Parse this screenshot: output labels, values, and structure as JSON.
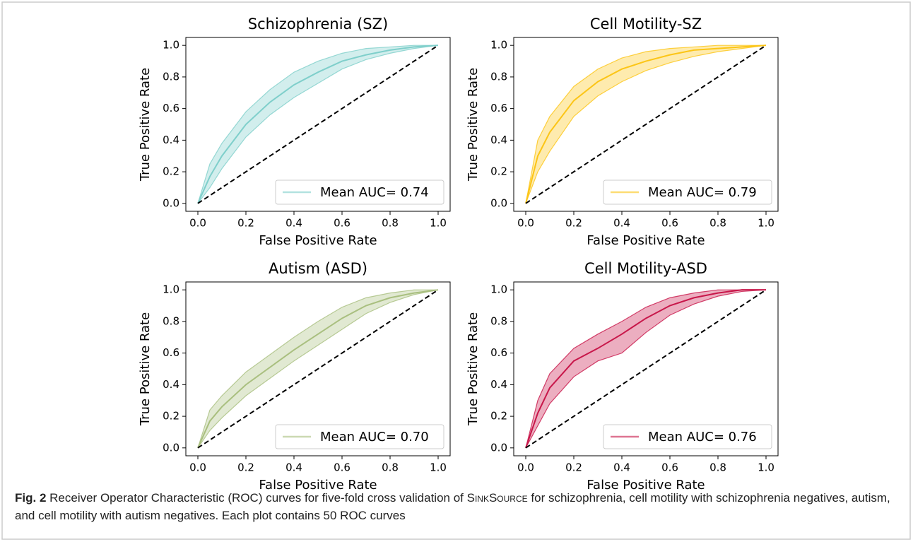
{
  "chart_data": [
    {
      "type": "line",
      "title": "Schizophrenia (SZ)",
      "xlabel": "False Positive Rate",
      "ylabel": "True Positive Rate",
      "xlim": [
        -0.05,
        1.05
      ],
      "ylim": [
        -0.05,
        1.05
      ],
      "xticks": [
        {
          "value": 0,
          "label": "0.0"
        },
        0.2,
        0.4,
        0.6,
        0.8,
        {
          "value": 1,
          "label": "1.0"
        }
      ],
      "yticks": [
        {
          "value": 0,
          "label": "0.0"
        },
        0.2,
        0.4,
        0.6,
        0.8,
        {
          "value": 1,
          "label": "1.0"
        }
      ],
      "legend": "lower right",
      "series": [
        {
          "name": "Mean AUC= 0.74",
          "color": "#7fcfcb",
          "x": [
            0,
            0.05,
            0.1,
            0.2,
            0.3,
            0.4,
            0.5,
            0.6,
            0.7,
            0.8,
            0.9,
            1
          ],
          "values": [
            0,
            0.17,
            0.3,
            0.5,
            0.64,
            0.75,
            0.83,
            0.9,
            0.94,
            0.97,
            0.99,
            1
          ],
          "lower": [
            0,
            0.1,
            0.22,
            0.42,
            0.56,
            0.67,
            0.76,
            0.85,
            0.91,
            0.95,
            0.98,
            1
          ],
          "upper": [
            0,
            0.25,
            0.38,
            0.58,
            0.72,
            0.83,
            0.9,
            0.95,
            0.98,
            0.99,
            1,
            1
          ]
        }
      ],
      "reference": {
        "x": [
          0,
          1
        ],
        "values": [
          0,
          1
        ]
      }
    },
    {
      "type": "line",
      "title": "Cell Motility-SZ",
      "xlabel": "False Positive Rate",
      "ylabel": "True Positive Rate",
      "xlim": [
        -0.05,
        1.05
      ],
      "ylim": [
        -0.05,
        1.05
      ],
      "xticks": [
        {
          "value": 0,
          "label": "0.0"
        },
        0.2,
        0.4,
        0.6,
        0.8,
        {
          "value": 1,
          "label": "1.0"
        }
      ],
      "yticks": [
        {
          "value": 0,
          "label": "0.0"
        },
        0.2,
        0.4,
        0.6,
        0.8,
        {
          "value": 1,
          "label": "1.0"
        }
      ],
      "legend": "lower right",
      "series": [
        {
          "name": "Mean AUC= 0.79",
          "color": "#fcc516",
          "x": [
            0,
            0.05,
            0.1,
            0.2,
            0.3,
            0.4,
            0.5,
            0.6,
            0.7,
            0.8,
            0.9,
            1
          ],
          "values": [
            0,
            0.3,
            0.45,
            0.65,
            0.77,
            0.85,
            0.9,
            0.94,
            0.97,
            0.98,
            0.99,
            1
          ],
          "lower": [
            0,
            0.2,
            0.33,
            0.55,
            0.68,
            0.77,
            0.84,
            0.89,
            0.93,
            0.96,
            0.98,
            1
          ],
          "upper": [
            0,
            0.4,
            0.55,
            0.74,
            0.85,
            0.92,
            0.96,
            0.98,
            0.99,
            1,
            1,
            1
          ]
        }
      ],
      "reference": {
        "x": [
          0,
          1
        ],
        "values": [
          0,
          1
        ]
      }
    },
    {
      "type": "line",
      "title": "Autism (ASD)",
      "xlabel": "False Positive Rate",
      "ylabel": "True Positive Rate",
      "xlim": [
        -0.05,
        1.05
      ],
      "ylim": [
        -0.05,
        1.05
      ],
      "xticks": [
        {
          "value": 0,
          "label": "0.0"
        },
        0.2,
        0.4,
        0.6,
        0.8,
        {
          "value": 1,
          "label": "1.0"
        }
      ],
      "yticks": [
        {
          "value": 0,
          "label": "0.0"
        },
        0.2,
        0.4,
        0.6,
        0.8,
        {
          "value": 1,
          "label": "1.0"
        }
      ],
      "legend": "lower right",
      "series": [
        {
          "name": "Mean AUC= 0.70",
          "color": "#a9bf7f",
          "x": [
            0,
            0.05,
            0.1,
            0.2,
            0.3,
            0.4,
            0.5,
            0.6,
            0.7,
            0.8,
            0.9,
            1
          ],
          "values": [
            0,
            0.17,
            0.26,
            0.4,
            0.51,
            0.62,
            0.72,
            0.82,
            0.9,
            0.95,
            0.98,
            1
          ],
          "lower": [
            0,
            0.11,
            0.19,
            0.33,
            0.44,
            0.55,
            0.65,
            0.75,
            0.85,
            0.92,
            0.97,
            1
          ],
          "upper": [
            0,
            0.24,
            0.33,
            0.48,
            0.59,
            0.7,
            0.8,
            0.89,
            0.95,
            0.98,
            1,
            1
          ]
        }
      ],
      "reference": {
        "x": [
          0,
          1
        ],
        "values": [
          0,
          1
        ]
      }
    },
    {
      "type": "line",
      "title": "Cell Motility-ASD",
      "xlabel": "False Positive Rate",
      "ylabel": "True Positive Rate",
      "xlim": [
        -0.05,
        1.05
      ],
      "ylim": [
        -0.05,
        1.05
      ],
      "xticks": [
        {
          "value": 0,
          "label": "0.0"
        },
        0.2,
        0.4,
        0.6,
        0.8,
        {
          "value": 1,
          "label": "1.0"
        }
      ],
      "yticks": [
        {
          "value": 0,
          "label": "0.0"
        },
        0.2,
        0.4,
        0.6,
        0.8,
        {
          "value": 1,
          "label": "1.0"
        }
      ],
      "legend": "lower right",
      "series": [
        {
          "name": "Mean AUC= 0.76",
          "color": "#c8174a",
          "x": [
            0,
            0.05,
            0.1,
            0.2,
            0.3,
            0.4,
            0.5,
            0.6,
            0.7,
            0.8,
            0.9,
            1
          ],
          "values": [
            0,
            0.22,
            0.38,
            0.55,
            0.63,
            0.72,
            0.82,
            0.9,
            0.95,
            0.98,
            1,
            1
          ],
          "lower": [
            0,
            0.14,
            0.28,
            0.45,
            0.55,
            0.6,
            0.73,
            0.84,
            0.91,
            0.96,
            0.99,
            1
          ],
          "upper": [
            0,
            0.3,
            0.47,
            0.63,
            0.72,
            0.8,
            0.89,
            0.95,
            0.98,
            1,
            1,
            1
          ]
        }
      ],
      "reference": {
        "x": [
          0,
          1
        ],
        "values": [
          0,
          1
        ]
      }
    }
  ],
  "caption": {
    "label": "Fig. 2",
    "text_before": "Receiver Operator Characteristic (ROC) curves for five-fold cross validation of",
    "method": "SinkSource",
    "text_after": "for schizophrenia, cell motility with schizophrenia negatives, autism, and cell motility with autism negatives. Each plot contains 50 ROC curves"
  }
}
